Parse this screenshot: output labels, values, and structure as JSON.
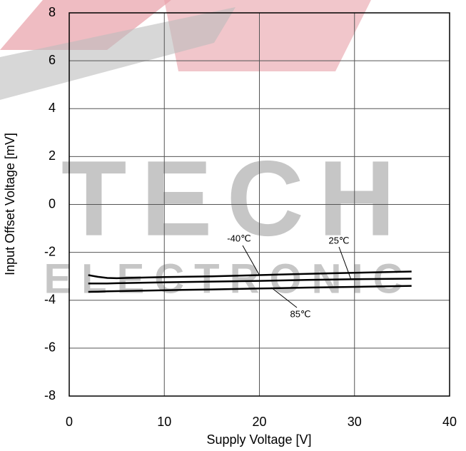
{
  "chart_data": {
    "type": "line",
    "x_label": "Supply Voltage [V]",
    "y_label": "Input Offset Voltage [mV]",
    "watermark": {
      "top": "TECH",
      "bottom": "ELECTRONIC"
    },
    "xlim": [
      0,
      40
    ],
    "xticks": [
      0,
      10,
      20,
      30,
      40
    ],
    "ylim": [
      -8,
      8
    ],
    "yticks": [
      -8,
      -6,
      -4,
      -2,
      0,
      2,
      4,
      6,
      8
    ],
    "grid": true,
    "x": [
      2,
      3,
      4,
      5,
      6,
      10,
      15,
      20,
      25,
      30,
      36
    ],
    "series": [
      {
        "name": "-40℃",
        "color": "#000000",
        "values": [
          -2.95,
          -3.02,
          -3.07,
          -3.08,
          -3.07,
          -3.03,
          -3.0,
          -2.95,
          -2.9,
          -2.85,
          -2.8
        ]
      },
      {
        "name": "25℃",
        "color": "#000000",
        "values": [
          -3.3,
          -3.3,
          -3.3,
          -3.29,
          -3.28,
          -3.25,
          -3.22,
          -3.19,
          -3.15,
          -3.12,
          -3.1
        ]
      },
      {
        "name": "85℃",
        "color": "#000000",
        "values": [
          -3.65,
          -3.64,
          -3.63,
          -3.62,
          -3.61,
          -3.58,
          -3.55,
          -3.51,
          -3.47,
          -3.44,
          -3.4
        ]
      }
    ]
  }
}
